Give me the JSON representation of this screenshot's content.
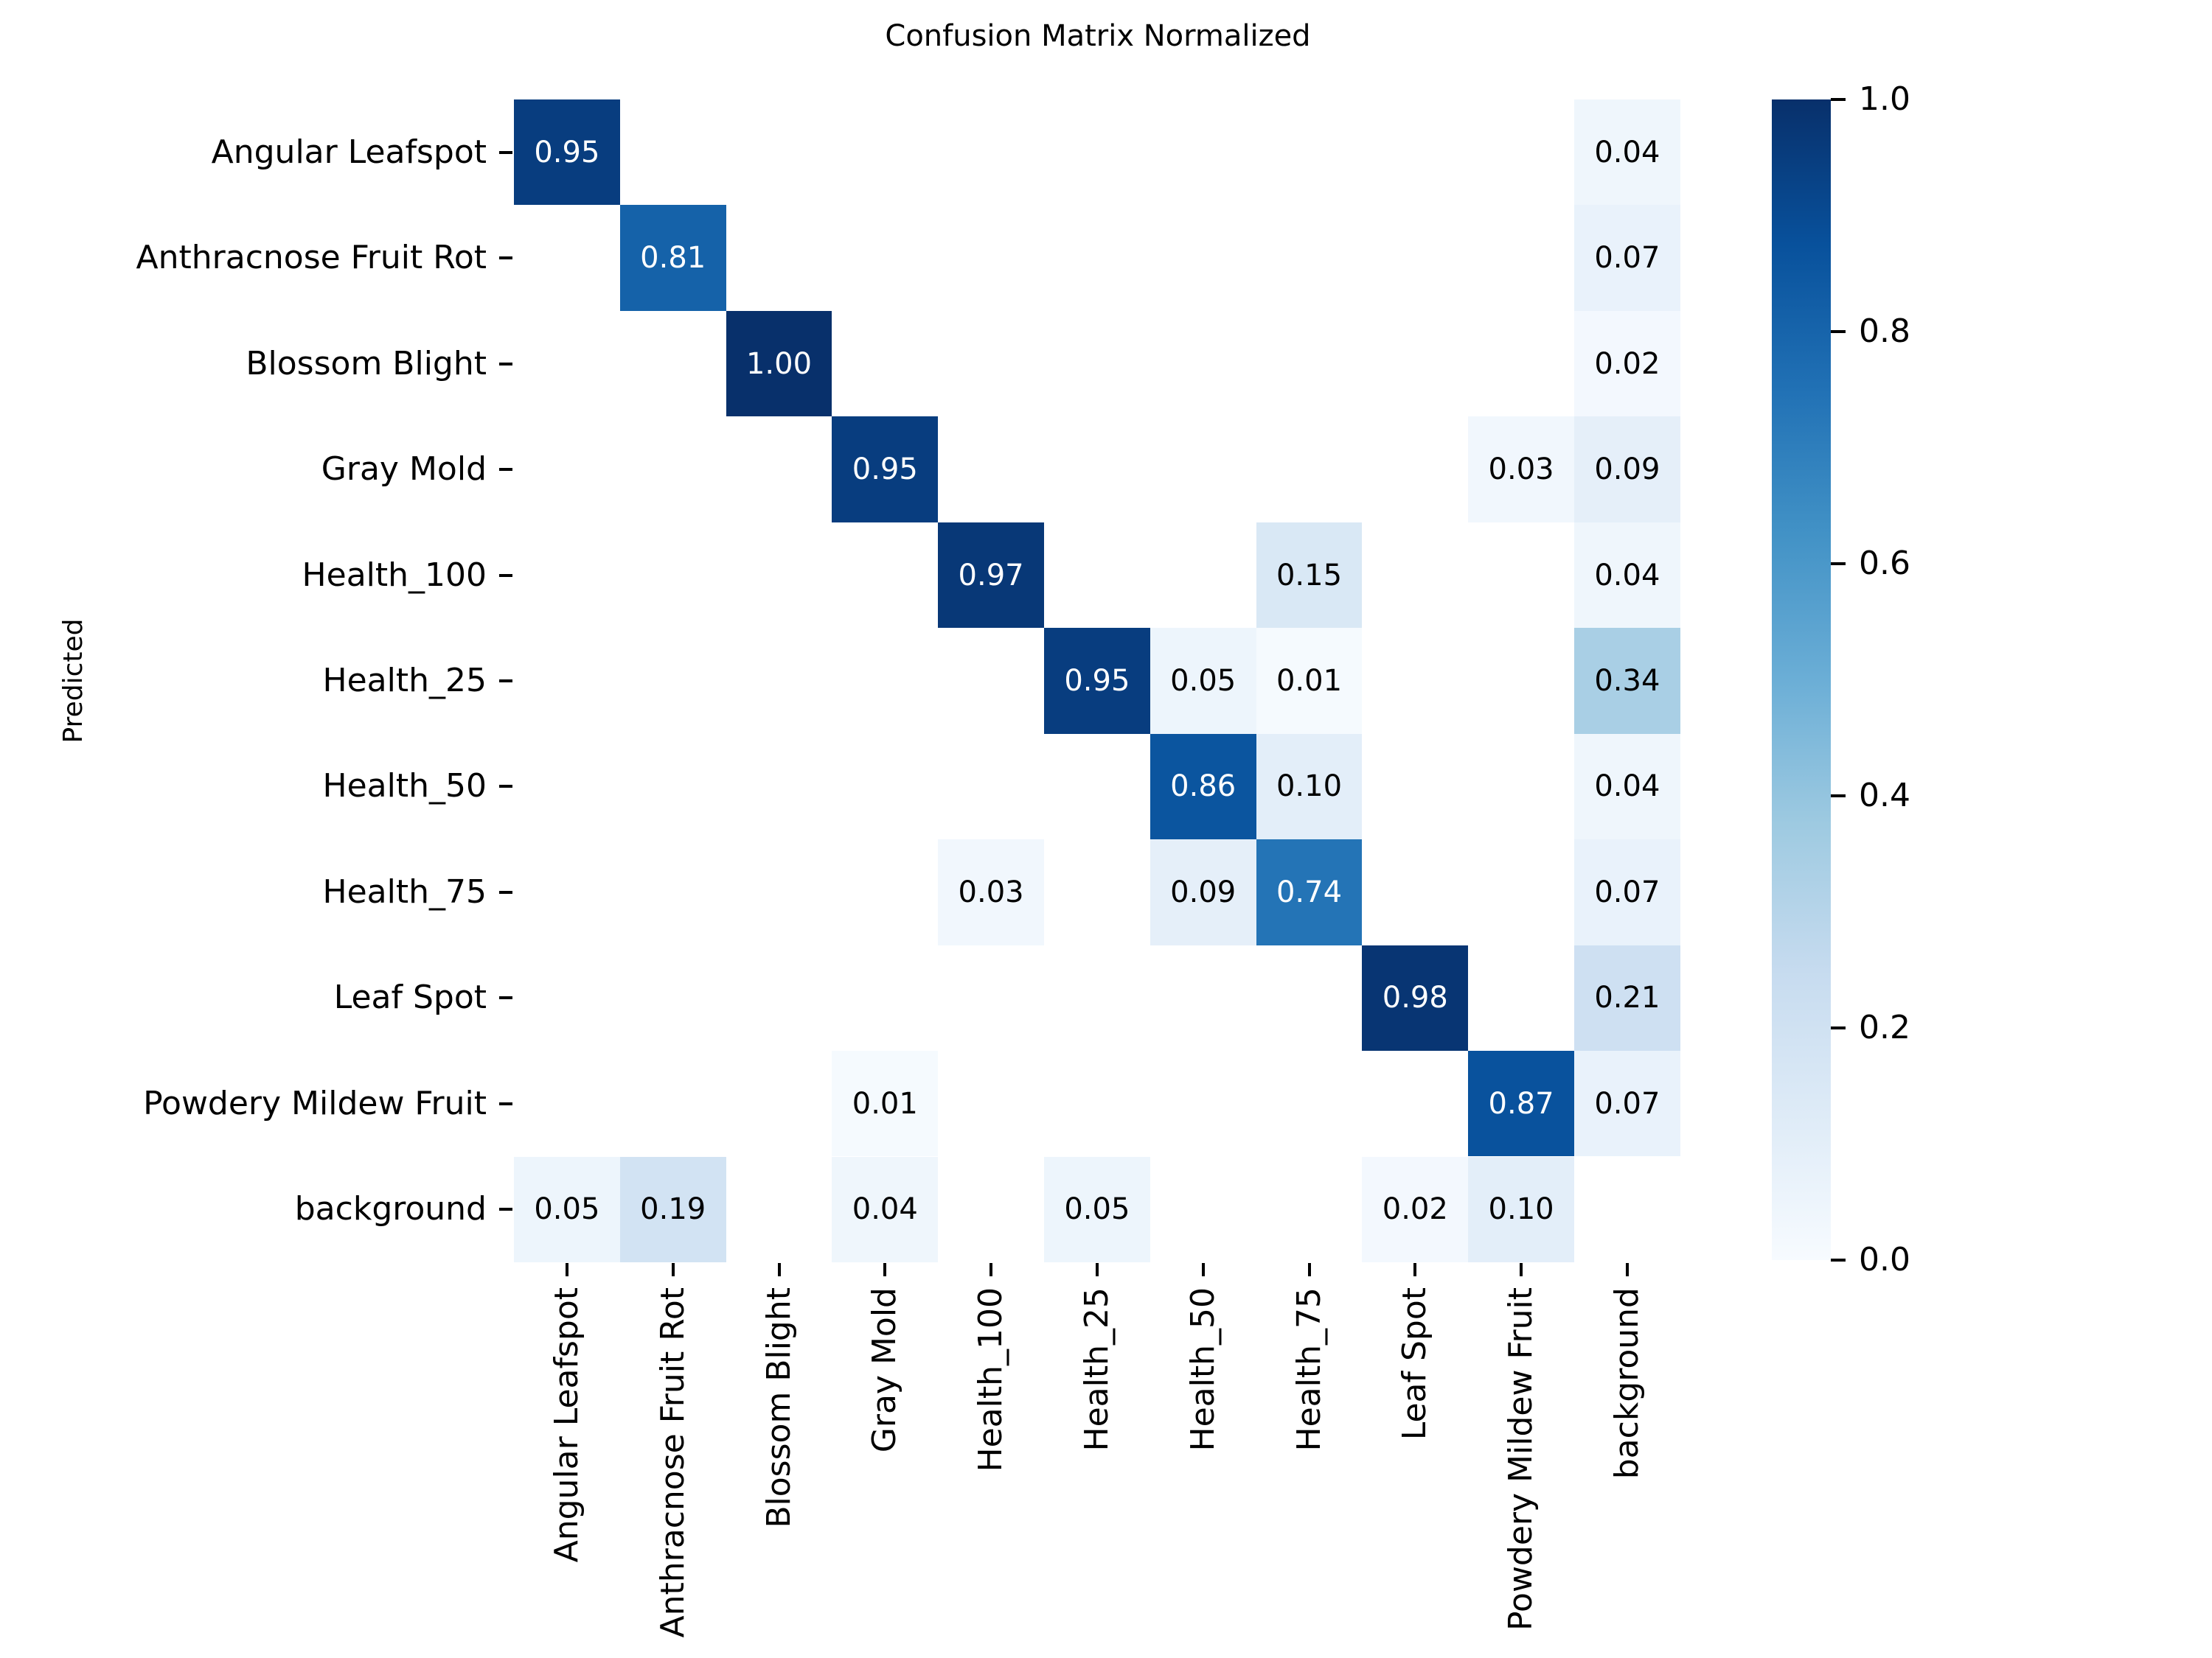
{
  "figure": {
    "title": "Confusion Matrix Normalized",
    "y_axis_title": "Predicted"
  },
  "chart_data": {
    "type": "heatmap",
    "title": "Confusion Matrix Normalized",
    "xlabel": "",
    "ylabel": "Predicted",
    "x_categories": [
      "Angular Leafspot",
      "Anthracnose Fruit Rot",
      "Blossom Blight",
      "Gray Mold",
      "Health_100",
      "Health_25",
      "Health_50",
      "Health_75",
      "Leaf Spot",
      "Powdery Mildew Fruit",
      "background"
    ],
    "y_categories": [
      "Angular Leafspot",
      "Anthracnose Fruit Rot",
      "Blossom Blight",
      "Gray Mold",
      "Health_100",
      "Health_25",
      "Health_50",
      "Health_75",
      "Leaf Spot",
      "Powdery Mildew Fruit",
      "background"
    ],
    "matrix": [
      [
        0.95,
        null,
        null,
        null,
        null,
        null,
        null,
        null,
        null,
        null,
        0.04
      ],
      [
        null,
        0.81,
        null,
        null,
        null,
        null,
        null,
        null,
        null,
        null,
        0.07
      ],
      [
        null,
        null,
        1.0,
        null,
        null,
        null,
        null,
        null,
        null,
        null,
        0.02
      ],
      [
        null,
        null,
        null,
        0.95,
        null,
        null,
        null,
        null,
        null,
        0.03,
        0.09
      ],
      [
        null,
        null,
        null,
        null,
        0.97,
        null,
        null,
        0.15,
        null,
        null,
        0.04
      ],
      [
        null,
        null,
        null,
        null,
        null,
        0.95,
        0.05,
        0.01,
        null,
        null,
        0.34
      ],
      [
        null,
        null,
        null,
        null,
        null,
        null,
        0.86,
        0.1,
        null,
        null,
        0.04
      ],
      [
        null,
        null,
        null,
        null,
        0.03,
        null,
        0.09,
        0.74,
        null,
        null,
        0.07
      ],
      [
        null,
        null,
        null,
        null,
        null,
        null,
        null,
        null,
        0.98,
        null,
        0.21
      ],
      [
        null,
        null,
        null,
        0.01,
        null,
        null,
        null,
        null,
        null,
        0.87,
        0.07
      ],
      [
        0.05,
        0.19,
        null,
        0.04,
        null,
        0.05,
        null,
        null,
        0.02,
        0.1,
        null
      ]
    ],
    "vmin": 0.0,
    "vmax": 1.0,
    "grid": false,
    "legend_position": "right-colorbar",
    "colormap": "Blues",
    "colormap_stops": [
      "#f7fbff",
      "#deebf7",
      "#c6dbef",
      "#9ecae1",
      "#6baed6",
      "#4292c6",
      "#2171b5",
      "#08519c",
      "#08306b"
    ],
    "colorbar_tick_labels": [
      "1.0",
      "0.8",
      "0.6",
      "0.4",
      "0.2",
      "0.0"
    ],
    "colorbar_tick_values": [
      1.0,
      0.8,
      0.6,
      0.4,
      0.2,
      0.0
    ],
    "annotation_color_light_cells": "#000000",
    "annotation_color_dark_cells": "#ffffff",
    "blank_cell_color": "#ffffff"
  }
}
